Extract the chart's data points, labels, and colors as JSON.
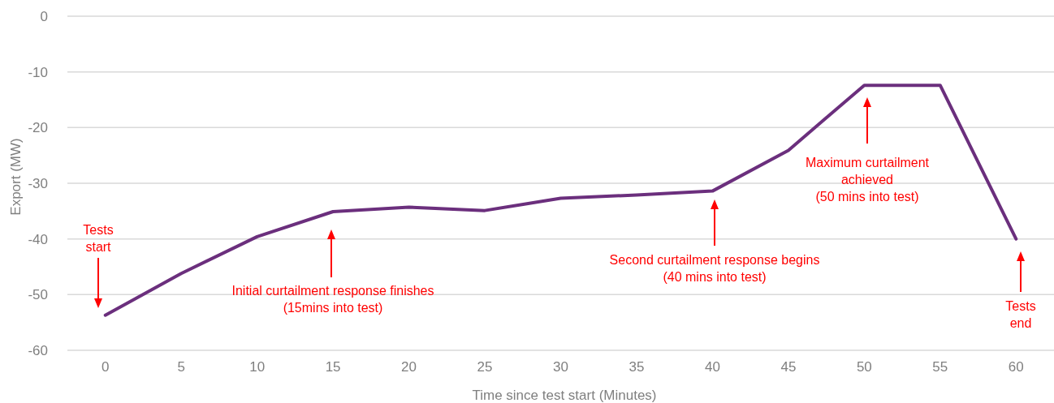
{
  "chart_data": {
    "type": "line",
    "xlabel": "Time since test start (Minutes)",
    "ylabel": "Export (MW)",
    "x": [
      0,
      5,
      10,
      15,
      20,
      25,
      30,
      35,
      40,
      45,
      50,
      55,
      60
    ],
    "series": [
      {
        "color": "#6b2f7d",
        "values": [
          -53.7,
          -46.2,
          -39.6,
          -35.1,
          -34.3,
          -34.9,
          -32.7,
          -32.1,
          -31.4,
          -24.1,
          -12.4,
          -12.4,
          -40.0
        ]
      }
    ],
    "xlim": [
      -2.5,
      62.5
    ],
    "xticks": [
      0,
      5,
      10,
      15,
      20,
      25,
      30,
      35,
      40,
      45,
      50,
      55,
      60
    ],
    "ylim": [
      -60,
      0
    ],
    "yticks": [
      -60,
      -50,
      -40,
      -30,
      -20,
      -10,
      0
    ],
    "grid": "y",
    "legend": false,
    "marker": "none",
    "line_style": "solid",
    "annotations": [
      "Tests\nstart",
      "Initial curtailment response finishes\n(15mins into test)",
      "Second curtailment response begins\n(40 mins into test)",
      "Maximum curtailment\nachieved\n(50 mins into test)",
      "Tests\nend"
    ]
  }
}
